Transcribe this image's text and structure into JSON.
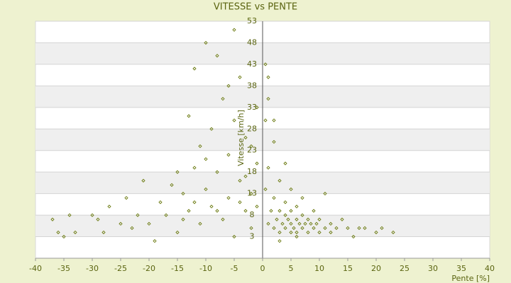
{
  "chart_data": {
    "type": "scatter",
    "title": "VITESSE vs PENTE",
    "x_label": "Pente [%]",
    "y_label": "Vitesse [km/h]",
    "color": "#6b7a10",
    "xlim": [
      -40,
      40
    ],
    "ylim": [
      -2,
      53
    ],
    "xticks": [
      -40,
      -35,
      -30,
      -25,
      -20,
      -15,
      -10,
      -5,
      0,
      5,
      10,
      15,
      20,
      25,
      30,
      35,
      40
    ],
    "yticks": [
      3,
      8,
      13,
      18,
      23,
      28,
      33,
      38,
      43,
      48,
      53
    ],
    "grid": true,
    "series": [
      {
        "name": "Vitesse",
        "color": "#6b7a10",
        "x": [
          -37,
          -36,
          -35,
          -34,
          -33,
          -30,
          -29,
          -28,
          -27,
          -25,
          -24,
          -23,
          -22,
          -21,
          -20,
          -19,
          -18,
          -17,
          -16,
          -15,
          -14,
          -13,
          -13,
          -12,
          -12,
          -11,
          -11,
          -10,
          -10,
          -9,
          -9,
          -8,
          -8,
          -7,
          -7,
          -6,
          -6,
          -5,
          -5,
          -5,
          -4,
          -4,
          -3,
          -3,
          -2,
          -2,
          -1,
          -1,
          -15,
          -14,
          -12,
          -10,
          -8,
          -6,
          -4,
          -3,
          -2,
          -1,
          0.5,
          0.5,
          1,
          1,
          1,
          1.5,
          2,
          2,
          2,
          2.5,
          3,
          3,
          3,
          3.5,
          4,
          4,
          4,
          4,
          4.5,
          5,
          5,
          5,
          5,
          5.5,
          6,
          6,
          6,
          6.5,
          7,
          7,
          7,
          7.5,
          8,
          8,
          8.5,
          9,
          9,
          9.5,
          10,
          10,
          11,
          11,
          12,
          12,
          13,
          14,
          15,
          16,
          17,
          18,
          20,
          21,
          23,
          3,
          6,
          2,
          1,
          0.5
        ],
        "values": [
          7,
          4,
          3,
          8,
          4,
          8,
          7,
          4,
          10,
          6,
          12,
          5,
          8,
          16,
          6,
          2,
          11,
          8,
          15,
          4,
          13,
          9,
          31,
          19,
          42,
          6,
          24,
          14,
          48,
          10,
          28,
          18,
          45,
          7,
          35,
          12,
          22,
          51,
          3,
          30,
          16,
          40,
          9,
          26,
          13,
          5,
          20,
          33,
          18,
          7,
          11,
          21,
          9,
          38,
          11,
          17,
          24,
          10,
          14,
          30,
          6,
          19,
          40,
          9,
          5,
          12,
          25,
          7,
          4,
          9,
          16,
          6,
          5,
          8,
          11,
          20,
          7,
          4,
          6,
          9,
          14,
          5,
          4,
          7,
          10,
          6,
          5,
          8,
          12,
          6,
          4,
          7,
          6,
          5,
          9,
          6,
          4,
          7,
          5,
          13,
          4,
          6,
          5,
          7,
          5,
          3,
          5,
          5,
          4,
          5,
          4,
          2,
          3,
          30,
          35,
          43
        ]
      }
    ]
  }
}
